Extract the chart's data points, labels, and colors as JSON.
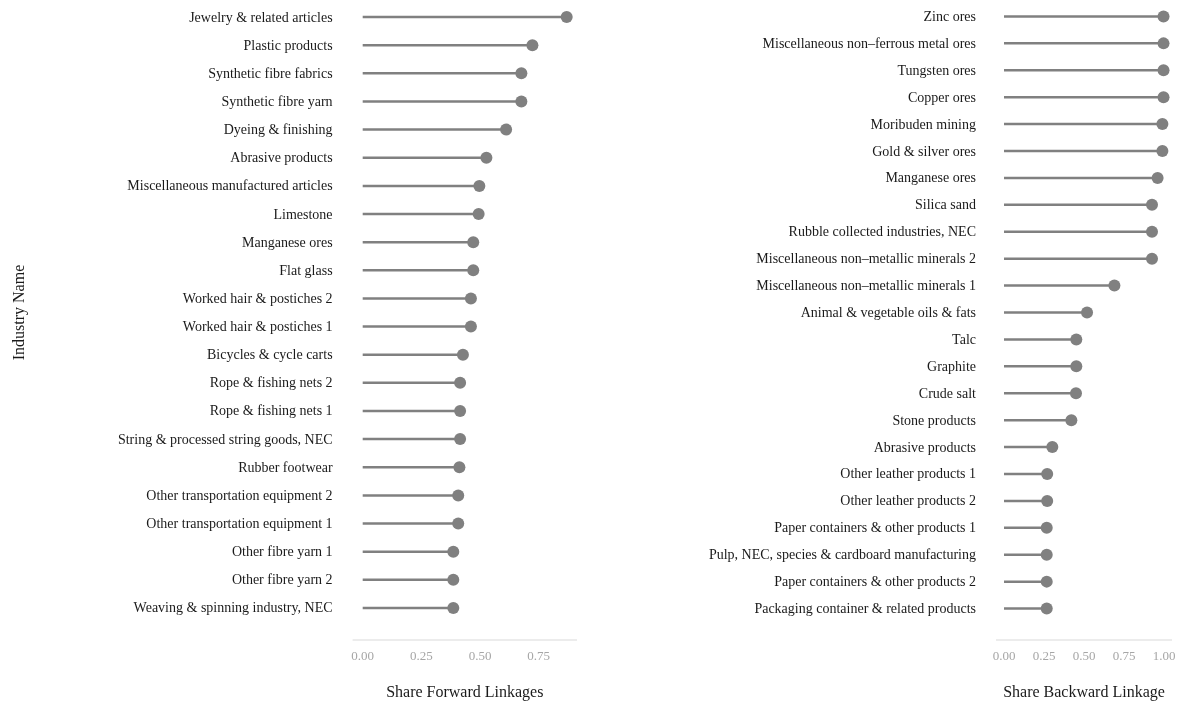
{
  "chart_data": [
    {
      "type": "lollipop",
      "orientation": "horizontal",
      "ylabel": "Industry Name",
      "xlabel": "Share Forward Linkages",
      "color": "#808080",
      "marker": "circle",
      "categories": [
        "Jewelry & related articles",
        "Plastic products",
        "Synthetic fibre fabrics",
        "Synthetic fibre yarn",
        "Dyeing & finishing",
        "Abrasive products",
        "Miscellaneous manufactured articles",
        "Limestone",
        "Manganese ores",
        "Flat glass",
        "Worked hair & postiches 2",
        "Worked hair & postiches 1",
        "Bicycles & cycle carts",
        "Rope & fishing nets 2",
        "Rope & fishing nets 1",
        "String & processed string goods, NEC",
        "Rubber footwear",
        "Other transportation equipment 2",
        "Other transportation equipment 1",
        "Other fibre yarn 1",
        "Other fibre yarn 2",
        "Weaving & spinning industry, NEC"
      ],
      "xlim": [
        -0.043,
        0.913
      ],
      "values": [
        0.869,
        0.723,
        0.676,
        0.676,
        0.611,
        0.527,
        0.497,
        0.494,
        0.471,
        0.471,
        0.461,
        0.461,
        0.427,
        0.415,
        0.415,
        0.415,
        0.412,
        0.407,
        0.407,
        0.386,
        0.386,
        0.386
      ],
      "xticks": [
        {
          "value": 0,
          "label": "0.00"
        },
        {
          "value": 0.25,
          "label": "0.25"
        },
        {
          "value": 0.5,
          "label": "0.50"
        },
        {
          "value": 0.75,
          "label": "0.75"
        }
      ]
    },
    {
      "type": "lollipop",
      "orientation": "horizontal",
      "xlabel": "Share Backward Linkage",
      "color": "#808080",
      "marker": "circle",
      "categories": [
        "Zinc ores",
        "Miscellaneous non–ferrous metal ores",
        "Tungsten ores",
        "Copper ores",
        "Moribuden mining",
        "Gold & silver ores",
        "Manganese ores",
        "Silica sand",
        "Rubble collected industries, NEC",
        "Miscellaneous non–metallic minerals 2",
        "Miscellaneous non–metallic minerals 1",
        "Animal & vegetable oils & fats",
        "Talc",
        "Graphite",
        "Crude salt",
        "Stone products",
        "Abrasive products",
        "Other leather products 1",
        "Other leather products 2",
        "Paper containers & other products 1",
        "Pulp, NEC, species & cardboard manufacturing",
        "Paper containers & other products 2",
        "Packaging container & related products"
      ],
      "xlim": [
        -0.05,
        1.05
      ],
      "values": [
        0.997,
        0.997,
        0.997,
        0.997,
        0.99,
        0.99,
        0.96,
        0.925,
        0.925,
        0.925,
        0.69,
        0.519,
        0.452,
        0.452,
        0.45,
        0.421,
        0.302,
        0.27,
        0.27,
        0.267,
        0.267,
        0.267,
        0.267
      ],
      "xticks": [
        {
          "value": 0,
          "label": "0.00"
        },
        {
          "value": 0.25,
          "label": "0.25"
        },
        {
          "value": 0.5,
          "label": "0.50"
        },
        {
          "value": 0.75,
          "label": "0.75"
        },
        {
          "value": 1,
          "label": "1.00"
        }
      ]
    }
  ]
}
